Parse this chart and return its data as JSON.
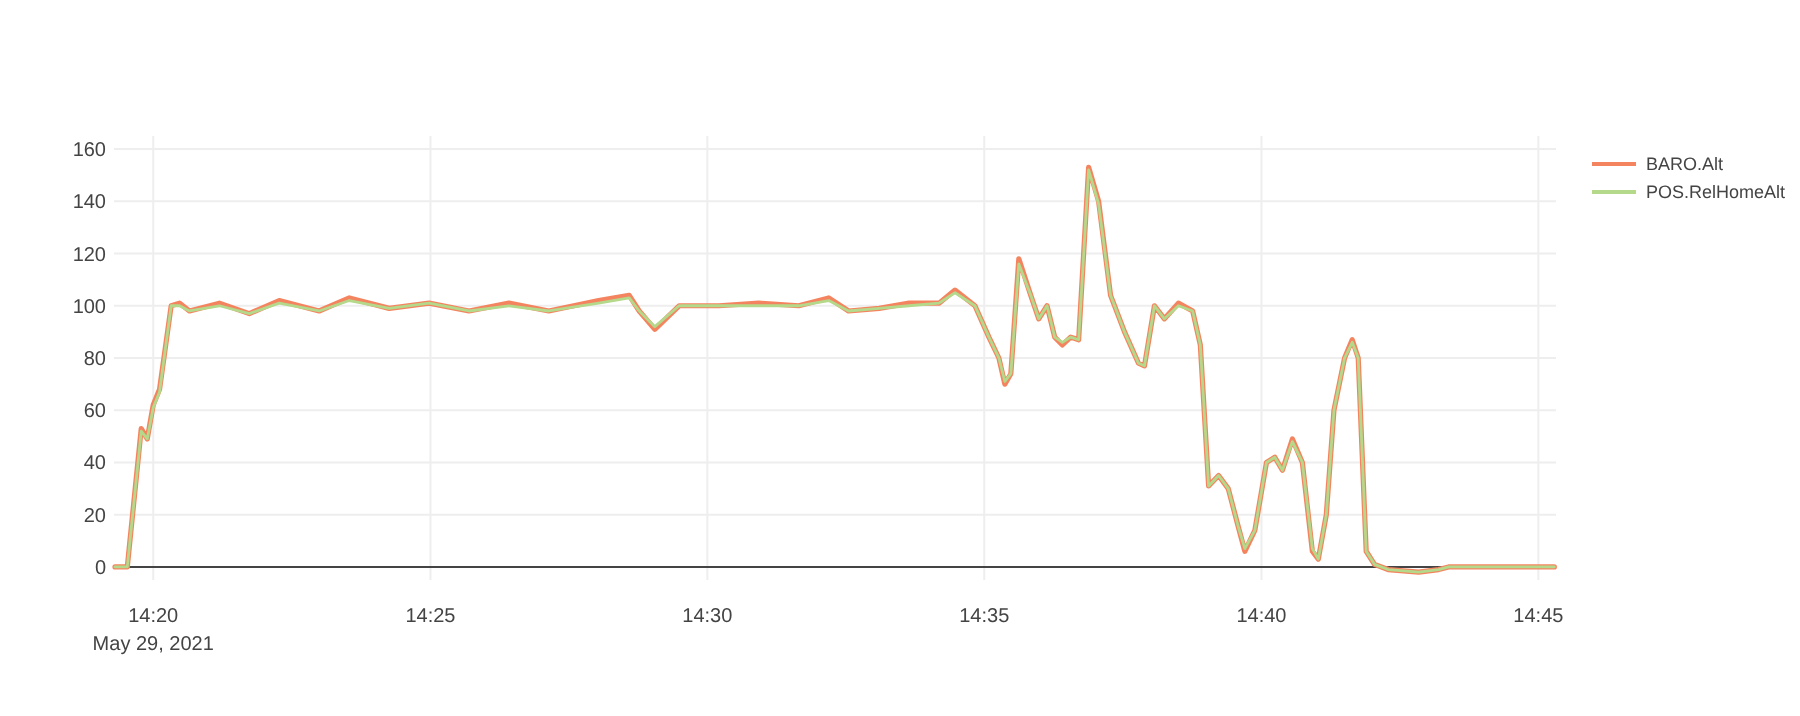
{
  "chart_data": {
    "type": "line",
    "x": [
      14.3218,
      14.3255,
      14.3297,
      14.3315,
      14.3333,
      14.3352,
      14.3387,
      14.3412,
      14.3442,
      14.3532,
      14.3622,
      14.3712,
      14.3832,
      14.3923,
      14.4043,
      14.4163,
      14.4283,
      14.4403,
      14.4523,
      14.4673,
      14.4765,
      14.4795,
      14.4842,
      14.4915,
      14.5035,
      14.5155,
      14.5275,
      14.5365,
      14.5425,
      14.5517,
      14.5607,
      14.5697,
      14.5745,
      14.5805,
      14.5847,
      14.5877,
      14.5895,
      14.5913,
      14.5937,
      14.5973,
      14.5997,
      14.6022,
      14.6045,
      14.6068,
      14.6093,
      14.6117,
      14.6147,
      14.6177,
      14.6213,
      14.6255,
      14.6297,
      14.6315,
      14.6345,
      14.6375,
      14.6417,
      14.646,
      14.6483,
      14.6508,
      14.6538,
      14.6567,
      14.6598,
      14.6617,
      14.6647,
      14.6682,
      14.6707,
      14.673,
      14.676,
      14.679,
      14.682,
      14.6838,
      14.6862,
      14.6885,
      14.6917,
      14.694,
      14.6958,
      14.6982,
      14.7007,
      14.7048,
      14.714,
      14.72,
      14.723,
      14.7548
    ],
    "series": [
      {
        "name": "BARO.Alt",
        "color": "#f4845f",
        "values": [
          0,
          0,
          53,
          49,
          62,
          68,
          100,
          101,
          98,
          101,
          97,
          102,
          98,
          103,
          99,
          101,
          98,
          101,
          98,
          102,
          104,
          98,
          91,
          100,
          100,
          101,
          100,
          103,
          98,
          99,
          101,
          101,
          106,
          100,
          88,
          80,
          70,
          74,
          118,
          104,
          95,
          100,
          88,
          85,
          88,
          87,
          153,
          140,
          104,
          90,
          78,
          77,
          100,
          95,
          101,
          98,
          85,
          31,
          35,
          30,
          15,
          6,
          14,
          40,
          42,
          37,
          49,
          40,
          6,
          3,
          20,
          60,
          80,
          87,
          80,
          6,
          1,
          -1,
          -2,
          -1,
          0,
          0
        ]
      },
      {
        "name": "POS.RelHomeAlt",
        "color": "#b5d98a",
        "values": [
          0,
          0,
          52,
          49,
          61,
          67,
          100,
          100,
          98,
          100,
          97,
          101,
          98,
          102,
          99,
          101,
          98,
          100,
          98,
          101,
          103,
          98,
          92,
          100,
          100,
          100,
          100,
          102,
          98,
          99,
          100,
          101,
          105,
          100,
          88,
          80,
          71,
          74,
          116,
          104,
          95,
          100,
          88,
          86,
          88,
          87,
          152,
          139,
          104,
          90,
          78,
          77,
          100,
          95,
          100,
          98,
          85,
          31,
          35,
          30,
          15,
          7,
          14,
          40,
          42,
          37,
          48,
          40,
          7,
          3,
          20,
          60,
          80,
          86,
          80,
          6,
          1,
          -1,
          -2,
          -1,
          0,
          0
        ]
      }
    ],
    "xlim": [
      14.3215,
      14.7553
    ],
    "xticks": [
      {
        "value": 14.3333,
        "label": "14:20"
      },
      {
        "value": 14.4167,
        "label": "14:25"
      },
      {
        "value": 14.5,
        "label": "14:30"
      },
      {
        "value": 14.5833,
        "label": "14:35"
      },
      {
        "value": 14.6667,
        "label": "14:40"
      },
      {
        "value": 14.75,
        "label": "14:45"
      }
    ],
    "ylim": [
      -5,
      165
    ],
    "yticks": [
      0,
      20,
      40,
      60,
      80,
      100,
      120,
      140,
      160
    ],
    "annotations": [
      "May 29, 2021"
    ],
    "grid": true,
    "legend": "top right"
  }
}
